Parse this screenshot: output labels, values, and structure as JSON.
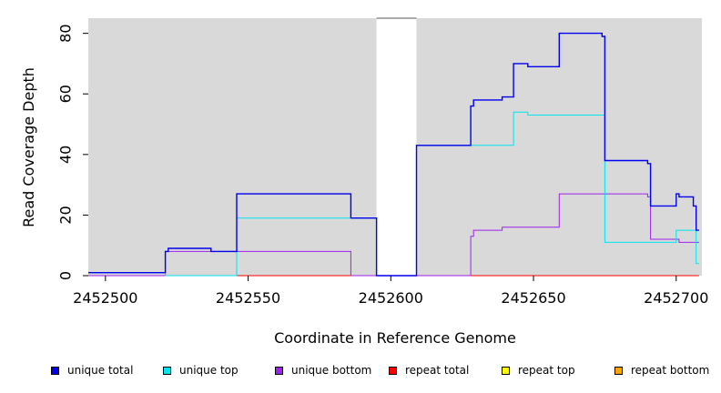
{
  "chart_data": {
    "type": "line",
    "title": "",
    "xlabel": "Coordinate in Reference Genome",
    "ylabel": "Read Coverage Depth",
    "xlim": [
      2452494,
      2452709
    ],
    "ylim": [
      0,
      85
    ],
    "xticks": [
      2452500,
      2452550,
      2452600,
      2452650,
      2452700
    ],
    "yticks": [
      0,
      20,
      40,
      60,
      80
    ],
    "grid": false,
    "legend_position": "bottom",
    "unmasked_region": [
      2452595,
      2452609
    ],
    "series": [
      {
        "name": "unique total",
        "color": "#0000ee",
        "x": [
          2452494,
          2452521,
          2452522,
          2452537,
          2452546,
          2452586,
          2452595,
          2452609,
          2452628,
          2452629,
          2452639,
          2452643,
          2452648,
          2452659,
          2452674,
          2452675,
          2452690,
          2452691,
          2452700,
          2452701,
          2452706,
          2452707,
          2452708
        ],
        "y": [
          1,
          8,
          9,
          8,
          27,
          19,
          0,
          43,
          56,
          58,
          59,
          70,
          69,
          80,
          79,
          38,
          37,
          23,
          27,
          26,
          23,
          15,
          15
        ]
      },
      {
        "name": "unique top",
        "color": "#00e5ee",
        "x": [
          2452494,
          2452521,
          2452546,
          2452595,
          2452609,
          2452643,
          2452648,
          2452674,
          2452675,
          2452690,
          2452700,
          2452706,
          2452707,
          2452708
        ],
        "y": [
          1,
          0,
          19,
          0,
          43,
          54,
          53,
          53,
          11,
          11,
          15,
          15,
          4,
          4
        ]
      },
      {
        "name": "unique bottom",
        "color": "#a020f0",
        "x": [
          2452494,
          2452521,
          2452522,
          2452586,
          2452628,
          2452629,
          2452639,
          2452659,
          2452690,
          2452691,
          2452701,
          2452708
        ],
        "y": [
          0,
          8,
          8,
          0,
          13,
          15,
          16,
          27,
          26,
          12,
          11,
          11
        ]
      },
      {
        "name": "repeat total",
        "color": "#ff0000",
        "x": [
          2452494,
          2452708
        ],
        "y": [
          0,
          0
        ]
      },
      {
        "name": "repeat top",
        "color": "#ffff00",
        "x": [
          2452494,
          2452708
        ],
        "y": [
          0,
          0
        ]
      },
      {
        "name": "repeat bottom",
        "color": "#ffa500",
        "x": [
          2452494,
          2452708
        ],
        "y": [
          0,
          0
        ]
      }
    ]
  }
}
